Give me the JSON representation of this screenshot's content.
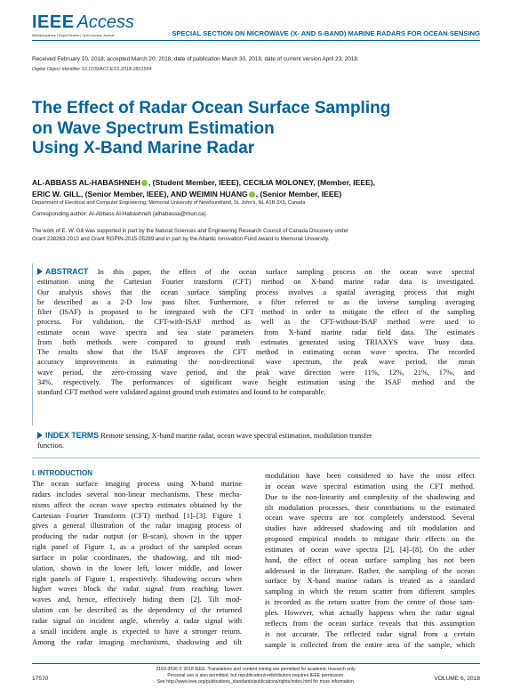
{
  "header": {
    "logo_main": "IEEE",
    "logo_sub": "Access",
    "logo_tagline": "Multidisciplinary  |  Rapid Review  |  Open Access Journal",
    "section": "SPECIAL SECTION ON MICROWAVE (X- AND S-BAND) MARINE RADARS FOR OCEAN SENSING",
    "color_brand": "#00629b"
  },
  "meta": {
    "received": "Received February 10, 2018, accepted March 20, 2018, date of publication March 30, 2018, date of current version April 23, 2018.",
    "doi": "Digital Object Identifier 10.1109/ACCESS.2018.2821564"
  },
  "title_lines": [
    "The Effect of Radar Ocean Surface Sampling",
    "on Wave Spectrum Estimation",
    "Using X-Band Marine Radar"
  ],
  "authors": {
    "line1_a": "AL-ABBASS AL-HABASHNEH",
    "line1_b": ", (Student Member, IEEE), CECILIA MOLONEY, (Member, IEEE),",
    "line2_a": "ERIC W. GILL, (Senior Member, IEEE), AND WEIMIN HUANG",
    "line2_b": ", (Senior Member, IEEE)",
    "affiliation": "Department of Electrical and Computer Engineering, Memorial University of Newfoundland, St. John’s, NL A1B 3X5, Canada",
    "corresponding": "Corresponding author: Al-Abbass Al-Habashneh (alhabassa@mun.ca)"
  },
  "funding_lines": [
    "The work of E. W. Gill was supported in part by the Natural Sciences and Engineering Research Council of Canada Discovery under",
    "Grant 238263-2010 and Grant RGPIN-2015-05289 and in part by the Atlantic Innovation Fund Award to Memorial University."
  ],
  "abstract": {
    "heading": "ABSTRACT",
    "lines": [
      "In this paper, the effect of the ocean surface sampling process on the ocean wave spectral",
      "estimation using the Cartesian Fourier transform (CFT) method on X-band marine radar data is investigated.",
      "Our analysis shows that the ocean surface sampling process involves a spatial averaging process that might",
      "be described as a 2-D low pass filter. Furthermore, a filter referred to as the inverse sampling averaging",
      "filter (ISAF) is proposed to be integrated with the CFT method in order to mitigate the effect of the sampling",
      "process. For validation, the CFT-with-ISAF method as well as the CFT-without-ISAF method were used to",
      "estimate ocean wave spectra and sea state parameters from X-band marine radar field data. The estimates",
      "from both methods were compared to ground truth estimates generated using TRIAXYS wave buoy data.",
      "The results show that the ISAF improves the CFT method in estimating ocean wave spectra. The recorded",
      "accuracy improvements in estimating the non-directional wave spectrum, the peak wave period, the mean",
      "wave period, the zero-crossing wave period, and the peak wave direction were 11%, 12%, 21%, 17%, and",
      "34%, respectively. The performances of significant wave height estimation using the ISAF method and the",
      "standard CFT method were validated against ground truth estimates and found to be comparable."
    ]
  },
  "index_terms": {
    "heading": "INDEX TERMS",
    "lines": [
      "Remote sensing, X-band marine radar, ocean wave spectral estimation, modulation transfer",
      "function."
    ]
  },
  "intro": {
    "heading": "I. INTRODUCTION",
    "col1_lines": [
      "The ocean surface imaging process using X-band marine",
      "radars includes several non-linear mechanisms. These mecha-",
      "nisms affect the ocean wave spectra estimates obtained by the",
      "Cartesian Fourier Transform (CFT) method [1]–[3]. Figure 1",
      "gives a general illustration of the radar imaging process of",
      "producing the radar output (or B-scan), shown in the upper",
      "right panel of Figure 1, as a product of the sampled ocean",
      "surface in polar coordinates, the shadowing, and tilt mod-",
      "ulation, shown in the lower left, lower middle, and lower",
      "right panels of Figure 1, respectively. Shadowing occurs when",
      "higher waves block the radar signal from reaching lower",
      "waves and, hence, effectively hiding them [2]. Tilt mod-",
      "ulation can be described as the dependency of the returned",
      "radar signal on incident angle, whereby a radar signal with",
      "a small incident angle is expected to have a stronger return.",
      "Among the radar imaging mechanisms, shadowing and tilt"
    ],
    "col2_lines": [
      "modulation have been considered to have the most effect",
      "in ocean wave spectral estimation using the CFT method.",
      "Due to the non-linearity and complexity of the shadowing and",
      "tilt modulation processes, their contributions to the estimated",
      "ocean wave spectra are not completely understood. Several",
      "studies have addressed shadowing and tilt modulation and",
      "proposed empirical models to mitigate their effects on the",
      "estimates of ocean wave spectra [2], [4]–[8]. On the other",
      "hand, the effect of ocean surface sampling has not been",
      "addressed in the literature. Rather, the sampling of the ocean",
      "surface by X-band marine radars is treated as a standard",
      "sampling in which the return scatter from different samples",
      "is recorded as the return scatter from the centre of those sam-",
      "ples. However, what actually happens when the radar signal",
      "reflects from the ocean surface reveals that this assumption",
      "is not accurate. The reflected radar signal from a certain",
      "sample is collected from the entire area of the sample, which"
    ]
  },
  "footer": {
    "page_number": "17570",
    "volume": "VOLUME 6, 2018",
    "lines": [
      "2169-3536 © 2018 IEEE. Translations and content mining are permitted for academic research only.",
      "Personal use is also permitted, but republication/redistribution requires IEEE permission.",
      "See http://www.ieee.org/publications_standards/publications/rights/index.html for more information."
    ]
  }
}
